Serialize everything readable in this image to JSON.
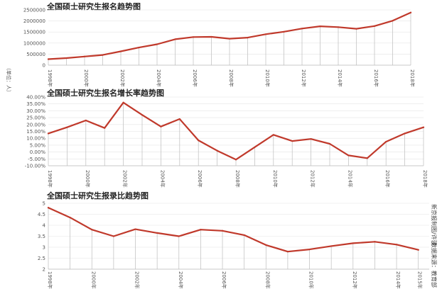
{
  "chart_data": [
    {
      "type": "line",
      "title": "全国硕士研究生报名趋势图",
      "ylabel": "（单位：人）",
      "ylim": [
        0,
        2500000
      ],
      "yticks": [
        0,
        500000,
        1000000,
        1500000,
        2000000,
        2500000
      ],
      "ytick_labels": [
        "0",
        "500000",
        "1000000",
        "1500000",
        "2000000",
        "2500000"
      ],
      "x": [
        1998,
        1999,
        2000,
        2001,
        2002,
        2003,
        2004,
        2005,
        2006,
        2007,
        2008,
        2009,
        2010,
        2011,
        2012,
        2013,
        2014,
        2015,
        2016,
        2017,
        2018
      ],
      "xtick_values": [
        1998,
        2000,
        2002,
        2004,
        2006,
        2008,
        2010,
        2012,
        2014,
        2016,
        2018
      ],
      "xtick_labels": [
        "1998年",
        "2000年",
        "2002年",
        "2004年",
        "2006年",
        "2008年",
        "2010年",
        "2012年",
        "2014年",
        "2016年",
        "2018年"
      ],
      "values": [
        274000,
        319000,
        392000,
        460000,
        624000,
        797000,
        945000,
        1172000,
        1271000,
        1282000,
        1200000,
        1246000,
        1400000,
        1512000,
        1656000,
        1760000,
        1720000,
        1647000,
        1770000,
        2010000,
        2380000
      ],
      "grid": true,
      "color": "#c0392b"
    },
    {
      "type": "line",
      "title": "全国硕士研究生报名增长率趋势图",
      "ylim": [
        -10,
        40
      ],
      "yticks": [
        -10,
        -5,
        0,
        5,
        10,
        15,
        20,
        25,
        30,
        35,
        40
      ],
      "ytick_labels": [
        "-10.00%",
        "-5.00%",
        "0.00%",
        "5.00%",
        "10.00%",
        "15.00%",
        "20.00%",
        "25.00%",
        "30.00%",
        "35.00%",
        "40.00%"
      ],
      "x": [
        1998,
        1999,
        2000,
        2001,
        2002,
        2003,
        2004,
        2005,
        2006,
        2007,
        2008,
        2009,
        2010,
        2011,
        2012,
        2013,
        2014,
        2015,
        2016,
        2017,
        2018
      ],
      "xtick_values": [
        1998,
        2000,
        2002,
        2004,
        2006,
        2008,
        2010,
        2012,
        2014,
        2016,
        2018
      ],
      "xtick_labels": [
        "1998年",
        "2000年",
        "2002年",
        "2004年",
        "2006年",
        "2008年",
        "2010年",
        "2012年",
        "2014年",
        "2016年",
        "2018年"
      ],
      "values": [
        13.5,
        18,
        23,
        17.5,
        36,
        27,
        18.5,
        24,
        8.5,
        1,
        -5.5,
        3.5,
        12.5,
        8,
        9.5,
        6,
        -2.5,
        -4.5,
        7.5,
        13.5,
        18
      ],
      "grid": true,
      "color": "#c0392b"
    },
    {
      "type": "line",
      "title": "全国硕士研究生报录比趋势图",
      "ylim": [
        2,
        5
      ],
      "yticks": [
        2,
        2.5,
        3,
        3.5,
        4,
        4.5,
        5
      ],
      "ytick_labels": [
        "2",
        "2.5",
        "3",
        "3.5",
        "4",
        "4.5",
        "5"
      ],
      "x": [
        1998,
        1999,
        2000,
        2001,
        2002,
        2003,
        2004,
        2005,
        2006,
        2007,
        2008,
        2009,
        2010,
        2011,
        2012,
        2013,
        2014,
        2015
      ],
      "xtick_values": [
        1998,
        2000,
        2002,
        2004,
        2006,
        2008,
        2010,
        2012,
        2014,
        2015
      ],
      "xtick_labels": [
        "1998年",
        "2000年",
        "2002年",
        "2004年",
        "2006年",
        "2008年",
        "2010年",
        "2012年",
        "2014年",
        "2015年"
      ],
      "values": [
        4.8,
        4.35,
        3.8,
        3.5,
        3.82,
        3.65,
        3.5,
        3.8,
        3.75,
        3.55,
        3.1,
        2.8,
        2.9,
        3.05,
        3.18,
        3.25,
        3.12,
        2.88
      ],
      "grid": true,
      "color": "#c0392b"
    }
  ],
  "credits": [
    "新京报制图/许骁",
    "数据来源：教育部"
  ]
}
